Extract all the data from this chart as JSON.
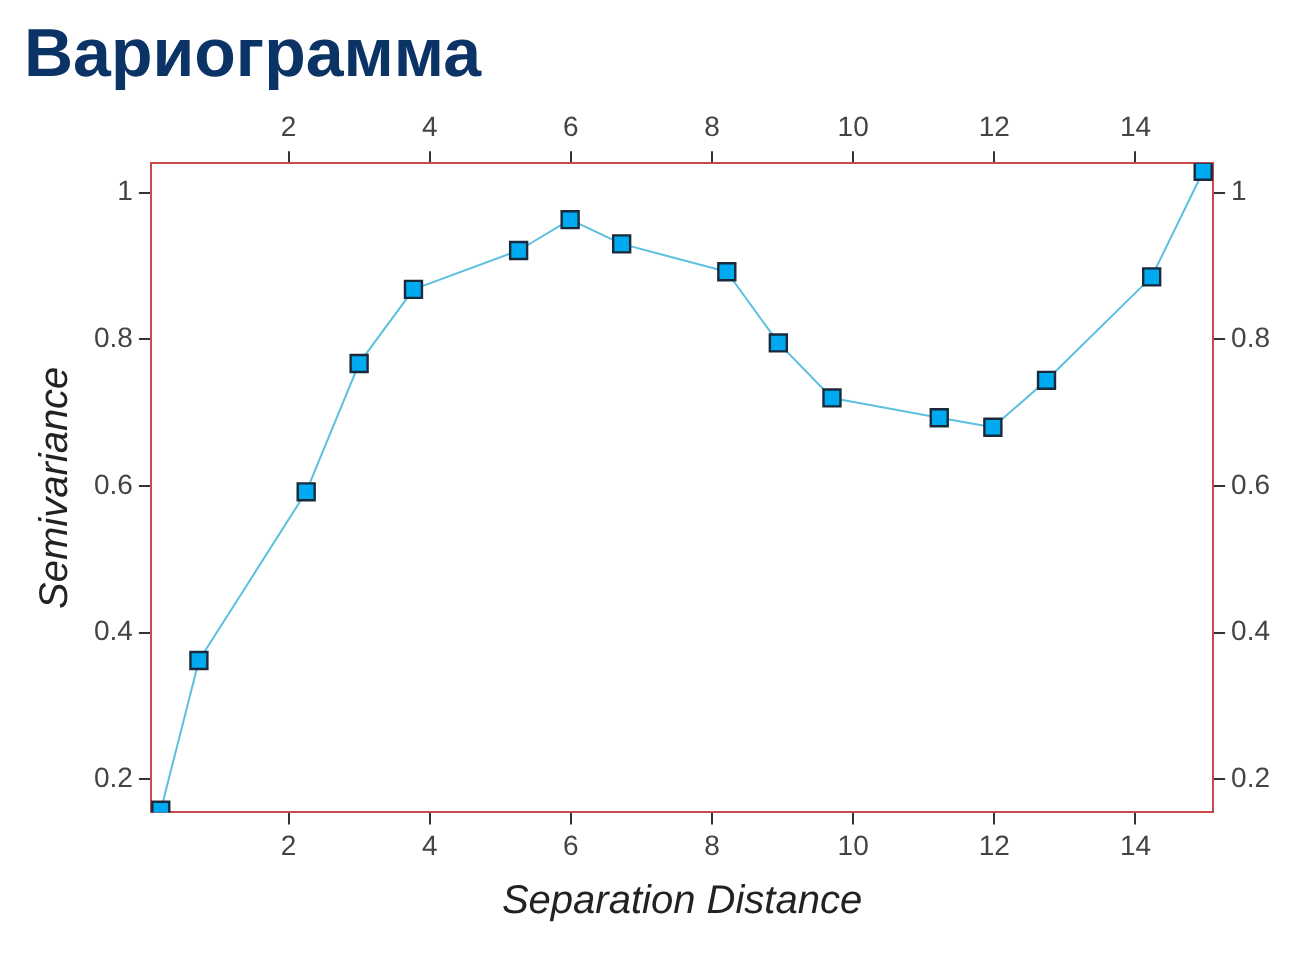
{
  "chart_data": {
    "type": "line",
    "title": "Вариограмма",
    "xlabel": "Separation Distance",
    "ylabel": "Semivariance",
    "series": [
      {
        "color": "#5bc0de",
        "x": [
          0.19,
          0.73,
          2.25,
          3.0,
          3.77,
          5.26,
          5.99,
          6.72,
          8.21,
          8.94,
          9.7,
          11.22,
          11.98,
          12.74,
          14.23,
          14.96
        ],
        "values": [
          0.158,
          0.362,
          0.592,
          0.767,
          0.868,
          0.921,
          0.963,
          0.93,
          0.892,
          0.795,
          0.72,
          0.693,
          0.68,
          0.744,
          0.885,
          1.029
        ]
      }
    ],
    "xlim": [
      0.05,
      15.1
    ],
    "xticks": [
      2,
      4,
      6,
      8,
      10,
      12,
      14
    ],
    "x2lim": [
      0.05,
      15.1
    ],
    "x2ticks": [
      2,
      4,
      6,
      8,
      10,
      12,
      14
    ],
    "ylim": [
      0.155,
      1.04
    ],
    "yticks": [
      0.2,
      0.4,
      0.6,
      0.8,
      1
    ],
    "y2lim": [
      0.155,
      1.04
    ],
    "y2ticks": [
      0.2,
      0.4,
      0.6,
      0.8,
      1
    ],
    "marker": "square",
    "line_style": "solid",
    "grid": false,
    "legend": false
  }
}
